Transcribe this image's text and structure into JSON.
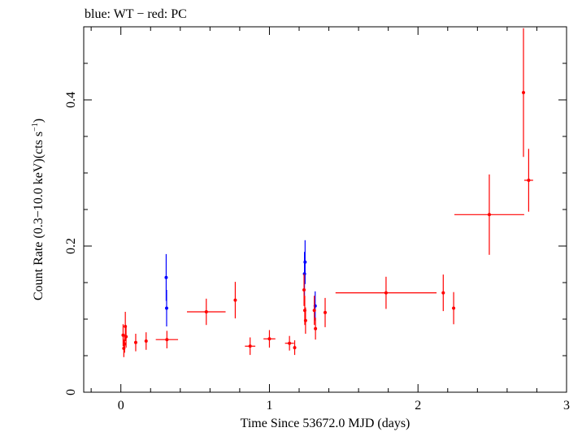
{
  "chart_data": {
    "type": "scatter",
    "title": "blue: WT − red: PC",
    "xlabel": "Time Since 53672.0 MJD (days)",
    "ylabel": "Count Rate (0.3−10.0 keV)(cts s",
    "ylabel_sup": "−1",
    "ylabel_end": ")",
    "xlim": [
      -0.25,
      3.0
    ],
    "ylim": [
      0,
      0.5
    ],
    "x_major_ticks": [
      0,
      1,
      2,
      3
    ],
    "x_tick_labels": [
      "0",
      "1",
      "2",
      "3"
    ],
    "x_minor_step": 0.2,
    "y_major_ticks": [
      0,
      0.2,
      0.4
    ],
    "y_tick_labels": [
      "0",
      "0.2",
      "0.4"
    ],
    "y_minor_step": 0.05,
    "grid": false,
    "series": [
      {
        "colour": "#0000ff",
        "points": [
          {
            "x": 0.305,
            "y": 0.157,
            "xerr": 0.002,
            "yerr": 0.032
          },
          {
            "x": 0.308,
            "y": 0.115,
            "xerr": 0.002,
            "yerr": 0.025
          },
          {
            "x": 1.236,
            "y": 0.162,
            "xerr": 0.002,
            "yerr": 0.03
          },
          {
            "x": 1.24,
            "y": 0.178,
            "xerr": 0.002,
            "yerr": 0.03
          },
          {
            "x": 1.308,
            "y": 0.118,
            "xerr": 0.002,
            "yerr": 0.02
          }
        ]
      },
      {
        "colour": "#ff0000",
        "points": [
          {
            "x": 0.015,
            "y": 0.078,
            "xerr": 0.004,
            "yerr": 0.015
          },
          {
            "x": 0.02,
            "y": 0.06,
            "xerr": 0.004,
            "yerr": 0.012
          },
          {
            "x": 0.025,
            "y": 0.066,
            "xerr": 0.004,
            "yerr": 0.012
          },
          {
            "x": 0.03,
            "y": 0.09,
            "xerr": 0.004,
            "yerr": 0.02
          },
          {
            "x": 0.035,
            "y": 0.076,
            "xerr": 0.005,
            "yerr": 0.015
          },
          {
            "x": 0.1,
            "y": 0.068,
            "xerr": 0.005,
            "yerr": 0.012
          },
          {
            "x": 0.17,
            "y": 0.07,
            "xerr": 0.008,
            "yerr": 0.012
          },
          {
            "x": 0.31,
            "y": 0.072,
            "xerr": 0.075,
            "yerr": 0.012
          },
          {
            "x": 0.575,
            "y": 0.11,
            "xerr": 0.13,
            "yerr": 0.018
          },
          {
            "x": 0.77,
            "y": 0.126,
            "xerr": 0.008,
            "yerr": 0.025
          },
          {
            "x": 0.87,
            "y": 0.063,
            "xerr": 0.035,
            "yerr": 0.012
          },
          {
            "x": 1.0,
            "y": 0.073,
            "xerr": 0.04,
            "yerr": 0.012
          },
          {
            "x": 1.135,
            "y": 0.067,
            "xerr": 0.03,
            "yerr": 0.01
          },
          {
            "x": 1.17,
            "y": 0.061,
            "xerr": 0.008,
            "yerr": 0.01
          },
          {
            "x": 1.233,
            "y": 0.14,
            "xerr": 0.003,
            "yerr": 0.022
          },
          {
            "x": 1.238,
            "y": 0.112,
            "xerr": 0.003,
            "yerr": 0.02
          },
          {
            "x": 1.243,
            "y": 0.098,
            "xerr": 0.003,
            "yerr": 0.018
          },
          {
            "x": 1.302,
            "y": 0.112,
            "xerr": 0.003,
            "yerr": 0.02
          },
          {
            "x": 1.31,
            "y": 0.087,
            "xerr": 0.005,
            "yerr": 0.015
          },
          {
            "x": 1.375,
            "y": 0.109,
            "xerr": 0.01,
            "yerr": 0.02
          },
          {
            "x": 1.785,
            "y": 0.136,
            "xerr": 0.34,
            "yerr": 0.022
          },
          {
            "x": 2.17,
            "y": 0.136,
            "xerr": 0.01,
            "yerr": 0.025
          },
          {
            "x": 2.24,
            "y": 0.115,
            "xerr": 0.01,
            "yerr": 0.022
          },
          {
            "x": 2.48,
            "y": 0.243,
            "xerr": 0.235,
            "yerr": 0.055
          },
          {
            "x": 2.71,
            "y": 0.41,
            "xerr": 0.005,
            "yerr": 0.088
          },
          {
            "x": 2.745,
            "y": 0.29,
            "xerr": 0.03,
            "yerr": 0.043
          }
        ]
      }
    ]
  }
}
